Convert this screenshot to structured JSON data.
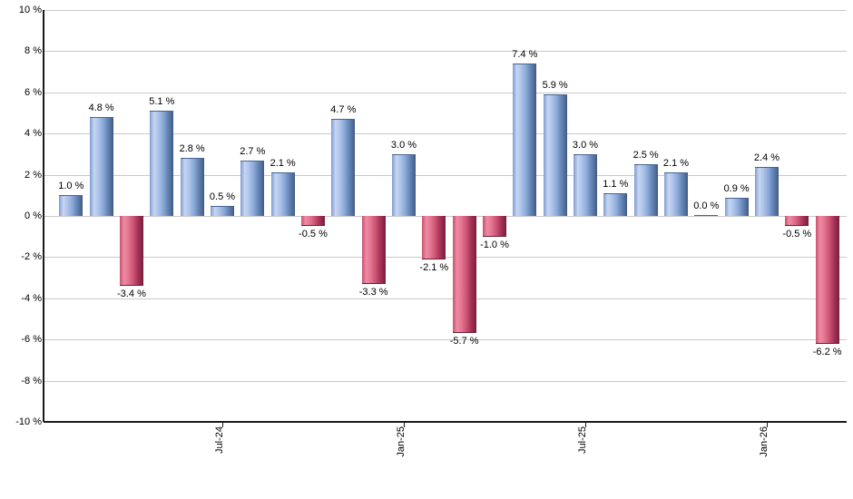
{
  "chart_data": {
    "type": "bar",
    "title": "",
    "xlabel": "",
    "ylabel": "",
    "unit": "%",
    "ylim": [
      -10,
      10
    ],
    "grid": true,
    "legend": "none",
    "y_ticks": [
      {
        "value": 10,
        "label": "10 %"
      },
      {
        "value": 8,
        "label": "8 %"
      },
      {
        "value": 6,
        "label": "6 %"
      },
      {
        "value": 4,
        "label": "4 %"
      },
      {
        "value": 2,
        "label": "2 %"
      },
      {
        "value": 0,
        "label": "0 %"
      },
      {
        "value": -2,
        "label": "-2 %"
      },
      {
        "value": -4,
        "label": "-4 %"
      },
      {
        "value": -6,
        "label": "-6 %"
      },
      {
        "value": -8,
        "label": "-8 %"
      },
      {
        "value": -10,
        "label": "-10 %"
      }
    ],
    "x_ticks": [
      {
        "bar_index": 5,
        "label": "Jul-24"
      },
      {
        "bar_index": 11,
        "label": "Jan-25"
      },
      {
        "bar_index": 17,
        "label": "Jul-25"
      },
      {
        "bar_index": 23,
        "label": "Jan-26"
      }
    ],
    "bars": [
      {
        "value": 1.0,
        "label": "1.0 %"
      },
      {
        "value": 4.8,
        "label": "4.8 %"
      },
      {
        "value": -3.4,
        "label": "-3.4 %"
      },
      {
        "value": 5.1,
        "label": "5.1 %"
      },
      {
        "value": 2.8,
        "label": "2.8 %"
      },
      {
        "value": 0.5,
        "label": "0.5 %"
      },
      {
        "value": 2.7,
        "label": "2.7 %"
      },
      {
        "value": 2.1,
        "label": "2.1 %"
      },
      {
        "value": -0.5,
        "label": "-0.5 %"
      },
      {
        "value": 4.7,
        "label": "4.7 %"
      },
      {
        "value": -3.3,
        "label": "-3.3 %"
      },
      {
        "value": 3.0,
        "label": "3.0 %"
      },
      {
        "value": -2.1,
        "label": "-2.1 %"
      },
      {
        "value": -5.7,
        "label": "-5.7 %"
      },
      {
        "value": -1.0,
        "label": "-1.0 %"
      },
      {
        "value": 7.4,
        "label": "7.4 %"
      },
      {
        "value": 5.9,
        "label": "5.9 %"
      },
      {
        "value": 3.0,
        "label": "3.0 %"
      },
      {
        "value": 1.1,
        "label": "1.1 %"
      },
      {
        "value": 2.5,
        "label": "2.5 %"
      },
      {
        "value": 2.1,
        "label": "2.1 %"
      },
      {
        "value": 0.0,
        "label": "0.0 %"
      },
      {
        "value": 0.9,
        "label": "0.9 %"
      },
      {
        "value": 2.4,
        "label": "2.4 %"
      },
      {
        "value": -0.5,
        "label": "-0.5 %"
      },
      {
        "value": -6.2,
        "label": "-6.2 %"
      }
    ],
    "colors": {
      "positive_base": "#7b9ace",
      "negative_base": "#c64f71",
      "gridline": "#c9c9c9",
      "axis": "#1a1a1a",
      "text": "#000000",
      "positive_gradient": [
        [
          0,
          "#7e9bd2"
        ],
        [
          18,
          "#c6d6f2"
        ],
        [
          35,
          "#b0c5ea"
        ],
        [
          55,
          "#8cabd9"
        ],
        [
          75,
          "#6787b9"
        ],
        [
          95,
          "#49658f"
        ],
        [
          100,
          "#3e5578"
        ]
      ],
      "negative_gradient": [
        [
          0,
          "#c9536f"
        ],
        [
          18,
          "#ef8aa4"
        ],
        [
          35,
          "#e47893"
        ],
        [
          55,
          "#cf5777"
        ],
        [
          75,
          "#aa3659"
        ],
        [
          95,
          "#822243"
        ],
        [
          100,
          "#741f3b"
        ]
      ]
    }
  }
}
